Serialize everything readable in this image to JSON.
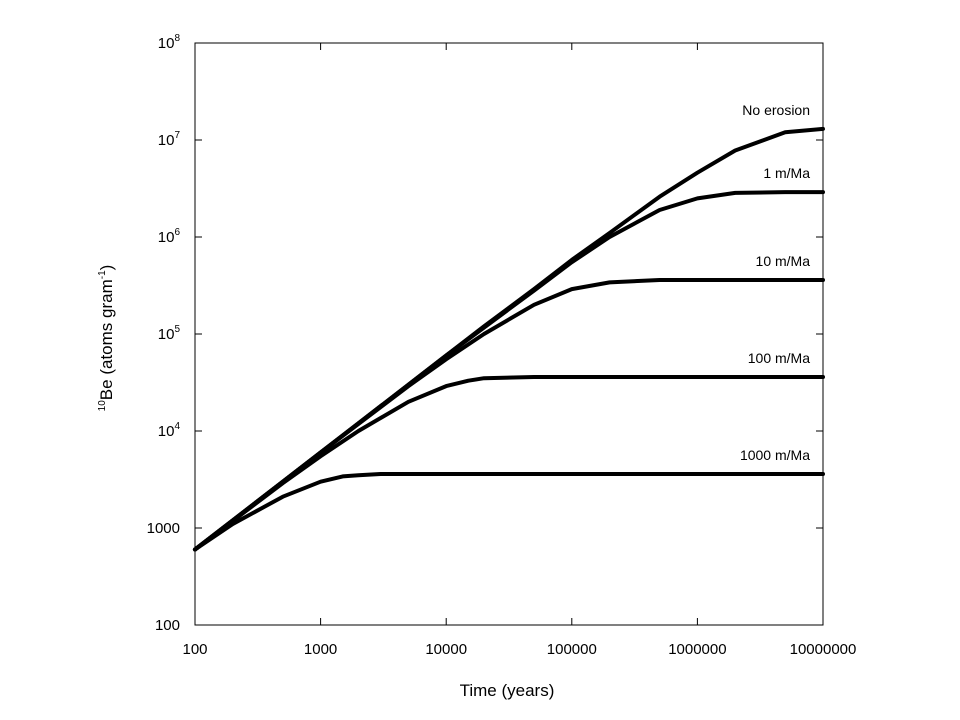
{
  "chart_data": {
    "type": "line",
    "title": "",
    "xlabel": "Time (years)",
    "ylabel": {
      "sup": "10",
      "base": "Be (atoms gram",
      "exp": "-1",
      "close": ")"
    },
    "x_scale": "log",
    "y_scale": "log",
    "xlim": [
      100,
      10000000
    ],
    "ylim": [
      100,
      100000000
    ],
    "x_ticks": [
      {
        "value": 100,
        "label": "100"
      },
      {
        "value": 1000,
        "label": "1000"
      },
      {
        "value": 10000,
        "label": "10000"
      },
      {
        "value": 100000,
        "label": "100000"
      },
      {
        "value": 1000000,
        "label": "1000000"
      },
      {
        "value": 10000000,
        "label": "10000000"
      }
    ],
    "y_ticks": [
      {
        "value": 100,
        "label": "100"
      },
      {
        "value": 1000,
        "label": "1000"
      },
      {
        "value": 10000,
        "base": "10",
        "exp": "4"
      },
      {
        "value": 100000,
        "base": "10",
        "exp": "5"
      },
      {
        "value": 1000000,
        "base": "10",
        "exp": "6"
      },
      {
        "value": 10000000,
        "base": "10",
        "exp": "7"
      },
      {
        "value": 100000000,
        "base": "10",
        "exp": "8"
      }
    ],
    "grid": false,
    "legend": "labels at right end of each curve",
    "series": [
      {
        "name": "No erosion",
        "x": [
          100,
          200,
          500,
          1000,
          2000,
          5000,
          10000,
          20000,
          50000,
          100000,
          200000,
          500000,
          1000000,
          2000000,
          5000000,
          10000000
        ],
        "y": [
          600,
          1200,
          3000,
          6000,
          12000,
          30000,
          60000,
          120000,
          290000,
          580000,
          1100000,
          2600000,
          4600000,
          7800000,
          12000000,
          13000000
        ]
      },
      {
        "name": "1 m/Ma",
        "x": [
          100,
          1000,
          10000,
          50000,
          100000,
          200000,
          500000,
          1000000,
          2000000,
          5000000,
          10000000
        ],
        "y": [
          600,
          6000,
          60000,
          280000,
          550000,
          1000000,
          1900000,
          2500000,
          2850000,
          2900000,
          2900000
        ]
      },
      {
        "name": "10 m/Ma",
        "x": [
          100,
          1000,
          5000,
          10000,
          20000,
          50000,
          100000,
          200000,
          500000,
          1000000,
          10000000
        ],
        "y": [
          600,
          6000,
          29000,
          55000,
          100000,
          200000,
          290000,
          340000,
          360000,
          360000,
          360000
        ]
      },
      {
        "name": "100 m/Ma",
        "x": [
          100,
          500,
          1000,
          2000,
          5000,
          10000,
          15000,
          20000,
          50000,
          10000000
        ],
        "y": [
          600,
          2900,
          5500,
          10000,
          20000,
          29000,
          33000,
          35000,
          36000,
          36000
        ]
      },
      {
        "name": "1000 m/Ma",
        "x": [
          100,
          200,
          500,
          1000,
          1500,
          2000,
          3000,
          10000000
        ],
        "y": [
          600,
          1100,
          2100,
          3000,
          3400,
          3500,
          3600,
          3600
        ]
      }
    ]
  }
}
